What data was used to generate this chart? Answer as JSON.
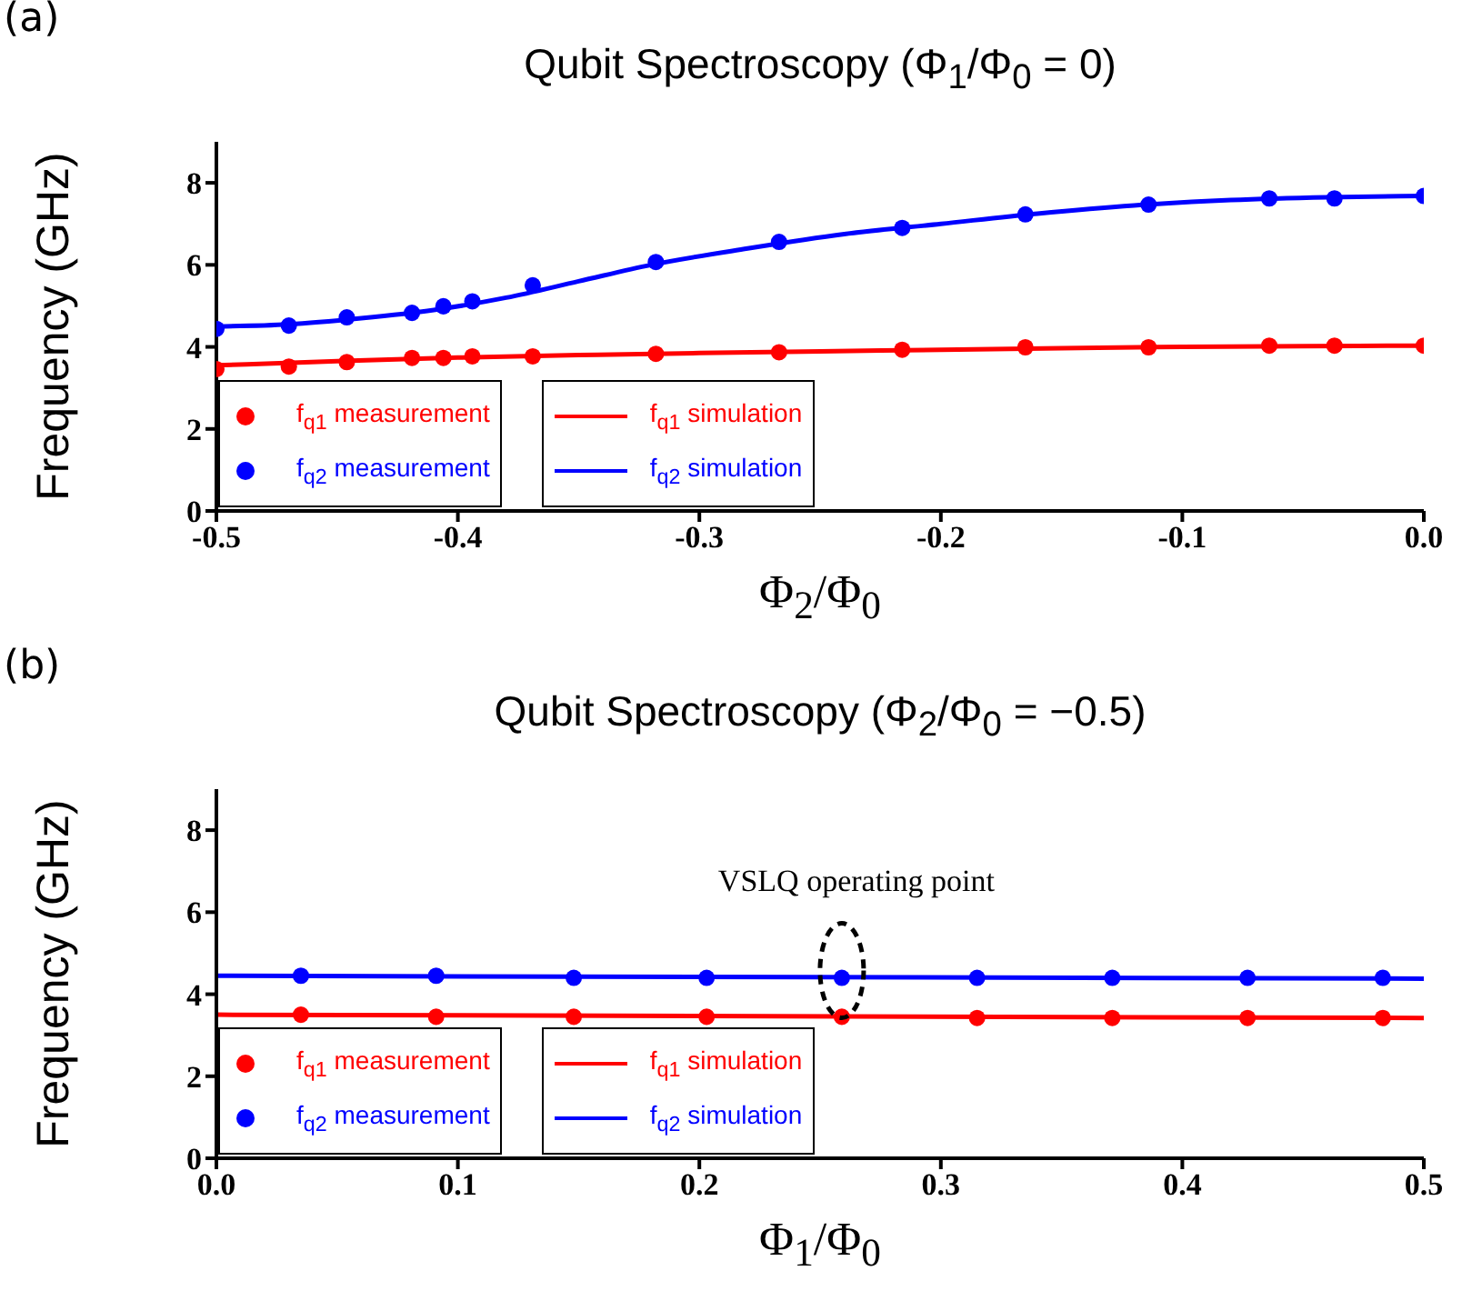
{
  "chart_data": [
    {
      "type": "scatter",
      "title": "Qubit Spectroscopy (Φ$_{1}$/Φ$_{0}$ = 0)",
      "xlabel": "Φ$_{2}$/Φ$_{0}$",
      "ylabel": "Frequency (GHz)",
      "annotations": [
        "(a)"
      ],
      "xlim": [
        -0.5,
        0
      ],
      "xticks": [
        -0.5,
        -0.4,
        -0.3,
        -0.2,
        -0.1,
        {
          "value": 0,
          "label": "0.0"
        }
      ],
      "ylim": [
        0,
        9
      ],
      "yticks": [
        0,
        2,
        4,
        6,
        8
      ],
      "legend": "bottom left",
      "grid": false,
      "series": [
        {
          "name": "f$_{q1}$ measurement",
          "type": "scatter",
          "marker": "circle",
          "color": "#ff0000",
          "x": [
            -0.5,
            -0.47,
            -0.446,
            -0.419,
            -0.406,
            -0.394,
            -0.369,
            -0.318,
            -0.267,
            -0.216,
            -0.165,
            -0.114,
            -0.064,
            -0.037,
            0
          ],
          "values": [
            3.46,
            3.52,
            3.63,
            3.73,
            3.73,
            3.77,
            3.77,
            3.83,
            3.87,
            3.93,
            3.99,
            3.99,
            4.03,
            4.03,
            4.03
          ]
        },
        {
          "name": "f$_{q2}$ measurement",
          "type": "scatter",
          "marker": "circle",
          "color": "#0000ff",
          "x": [
            -0.5,
            -0.47,
            -0.446,
            -0.419,
            -0.406,
            -0.394,
            -0.369,
            -0.318,
            -0.267,
            -0.216,
            -0.165,
            -0.114,
            -0.064,
            -0.037,
            0
          ],
          "values": [
            4.44,
            4.52,
            4.72,
            4.83,
            4.99,
            5.11,
            5.5,
            6.07,
            6.56,
            6.9,
            7.23,
            7.47,
            7.62,
            7.62,
            7.68
          ]
        },
        {
          "name": "f$_{q1}$ simulation",
          "type": "line",
          "marker": "none",
          "color": "#ff0000",
          "x": [
            -0.5,
            -0.45,
            -0.4,
            -0.35,
            -0.3,
            -0.25,
            -0.2,
            -0.15,
            -0.1,
            -0.05,
            0
          ],
          "values": [
            3.55,
            3.65,
            3.74,
            3.8,
            3.85,
            3.89,
            3.93,
            3.97,
            4.0,
            4.02,
            4.03
          ]
        },
        {
          "name": "f$_{q2}$ simulation",
          "type": "line",
          "marker": "none",
          "color": "#0000ff",
          "x": [
            -0.5,
            -0.47,
            -0.44,
            -0.41,
            -0.38,
            -0.35,
            -0.32,
            -0.28,
            -0.24,
            -0.2,
            -0.16,
            -0.12,
            -0.08,
            -0.04,
            0
          ],
          "values": [
            4.5,
            4.55,
            4.7,
            4.9,
            5.2,
            5.6,
            6.0,
            6.4,
            6.75,
            7.0,
            7.25,
            7.45,
            7.58,
            7.65,
            7.68
          ]
        }
      ]
    },
    {
      "type": "scatter",
      "title": "Qubit Spectroscopy (Φ$_{2}$/Φ$_{0}$ = −0.5)",
      "xlabel": "Φ$_{1}$/Φ$_{0}$",
      "ylabel": "Frequency (GHz)",
      "annotations": [
        "(b)",
        {
          "text": "VSLQ operating point",
          "x": 0.259,
          "y": 4.4
        }
      ],
      "xlim": [
        0,
        0.5
      ],
      "xticks": [
        {
          "value": 0,
          "label": "0.0"
        },
        0.1,
        0.2,
        0.3,
        0.4,
        0.5
      ],
      "ylim": [
        0,
        9
      ],
      "yticks": [
        0,
        2,
        4,
        6,
        8
      ],
      "legend": "bottom left",
      "grid": false,
      "series": [
        {
          "name": "f$_{q1}$ measurement",
          "type": "scatter",
          "marker": "circle",
          "color": "#ff0000",
          "x": [
            0.035,
            0.091,
            0.148,
            0.203,
            0.259,
            0.315,
            0.371,
            0.427,
            0.483
          ],
          "values": [
            3.5,
            3.45,
            3.45,
            3.45,
            3.45,
            3.42,
            3.42,
            3.42,
            3.42
          ]
        },
        {
          "name": "f$_{q2}$ measurement",
          "type": "scatter",
          "marker": "circle",
          "color": "#0000ff",
          "x": [
            0.035,
            0.091,
            0.148,
            0.203,
            0.259,
            0.315,
            0.371,
            0.427,
            0.483
          ],
          "values": [
            4.45,
            4.45,
            4.4,
            4.4,
            4.4,
            4.4,
            4.4,
            4.4,
            4.4
          ]
        },
        {
          "name": "f$_{q1}$ simulation",
          "type": "line",
          "marker": "none",
          "color": "#ff0000",
          "x": [
            0,
            0.5
          ],
          "values": [
            3.5,
            3.42
          ]
        },
        {
          "name": "f$_{q2}$ simulation",
          "type": "line",
          "marker": "none",
          "color": "#0000ff",
          "x": [
            0,
            0.5
          ],
          "values": [
            4.45,
            4.38
          ]
        }
      ]
    }
  ]
}
